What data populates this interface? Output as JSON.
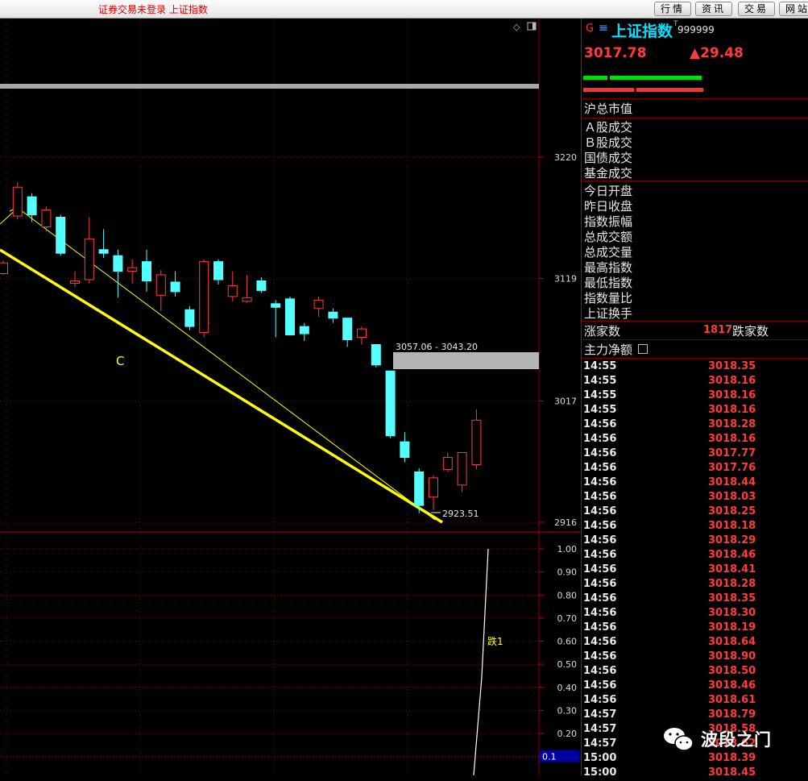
{
  "topbar": {
    "status": "证券交易未登录  上证指数",
    "buttons": [
      "行情",
      "资讯",
      "交易",
      "网站"
    ]
  },
  "chart": {
    "y_axis_labels": [
      "3220",
      "3119",
      "3017",
      "2916"
    ],
    "indicator_axis_labels": [
      "1.00",
      "0.90",
      "0.80",
      "0.70",
      "0.60",
      "0.50",
      "0.40",
      "0.30",
      "0.20",
      "0.1"
    ],
    "annotation_c": "C",
    "range_label": "3057.06 - 3043.20",
    "low_label": "2923.51",
    "indicator_label": "跌1",
    "candles": [
      {
        "o": 3123,
        "c": 3132,
        "h": 3134,
        "l": 3122
      },
      {
        "o": 3171,
        "c": 3195,
        "h": 3199,
        "l": 3168
      },
      {
        "o": 3187,
        "c": 3172,
        "h": 3190,
        "l": 3166
      },
      {
        "o": 3162,
        "c": 3176,
        "h": 3179,
        "l": 3158
      },
      {
        "o": 3170,
        "c": 3140,
        "h": 3172,
        "l": 3138
      },
      {
        "o": 3115,
        "c": 3117,
        "h": 3125,
        "l": 3112
      },
      {
        "o": 3118,
        "c": 3152,
        "h": 3170,
        "l": 3115
      },
      {
        "o": 3143,
        "c": 3140,
        "h": 3160,
        "l": 3136
      },
      {
        "o": 3138,
        "c": 3125,
        "h": 3143,
        "l": 3103
      },
      {
        "o": 3125,
        "c": 3128,
        "h": 3135,
        "l": 3115
      },
      {
        "o": 3133,
        "c": 3117,
        "h": 3143,
        "l": 3108
      },
      {
        "o": 3105,
        "c": 3122,
        "h": 3126,
        "l": 3092
      },
      {
        "o": 3116,
        "c": 3108,
        "h": 3125,
        "l": 3104
      },
      {
        "o": 3093,
        "c": 3079,
        "h": 3096,
        "l": 3076
      },
      {
        "o": 3074,
        "c": 3133,
        "h": 3135,
        "l": 3070
      },
      {
        "o": 3133,
        "c": 3118,
        "h": 3135,
        "l": 3114
      },
      {
        "o": 3104,
        "c": 3113,
        "h": 3125,
        "l": 3100
      },
      {
        "o": 3100,
        "c": 3103,
        "h": 3122,
        "l": 3099
      },
      {
        "o": 3117,
        "c": 3109,
        "h": 3120,
        "l": 3107
      },
      {
        "o": 3098,
        "c": 3095,
        "h": 3101,
        "l": 3070
      },
      {
        "o": 3102,
        "c": 3072,
        "h": 3104,
        "l": 3072
      },
      {
        "o": 3079,
        "c": 3073,
        "h": 3082,
        "l": 3067
      },
      {
        "o": 3094,
        "c": 3101,
        "h": 3104,
        "l": 3087
      },
      {
        "o": 3091,
        "c": 3086,
        "h": 3094,
        "l": 3082
      },
      {
        "o": 3086,
        "c": 3068,
        "h": 3086,
        "l": 3062
      },
      {
        "o": 3070,
        "c": 3077,
        "h": 3079,
        "l": 3064
      },
      {
        "o": 3064,
        "c": 3047,
        "h": 3064,
        "l": 3045
      },
      {
        "o": 3042,
        "c": 2988,
        "h": 3042,
        "l": 2986
      },
      {
        "o": 2983,
        "c": 2970,
        "h": 2991,
        "l": 2966
      },
      {
        "o": 2958,
        "c": 2930,
        "h": 2961,
        "l": 2923.51
      },
      {
        "o": 2937,
        "c": 2953,
        "h": 2955,
        "l": 2926
      },
      {
        "o": 2960,
        "c": 2970,
        "h": 2974,
        "l": 2958
      },
      {
        "o": 2947,
        "c": 2974,
        "h": 2974,
        "l": 2941
      },
      {
        "o": 2964,
        "c": 3001,
        "h": 3010,
        "l": 2960
      }
    ]
  },
  "quote": {
    "market_code": "G",
    "menu_icon": "hamburger-icon",
    "name": "上证指数",
    "code": "999999",
    "price": "3017.78",
    "change": "▲29.48",
    "fields_group1": [
      "沪总市值"
    ],
    "fields_group2": [
      "Ａ股成交",
      "Ｂ股成交",
      "国债成交",
      "基金成交"
    ],
    "fields_group3": [
      "今日开盘",
      "昨日收盘",
      "指数振幅",
      "总成交额",
      "总成交量",
      "最高指数",
      "最低指数",
      "指数量比",
      "上证换手"
    ],
    "advance_label": "涨家数",
    "advance_count": "1817",
    "decline_label": "跌家数",
    "net_flow_label": "主力净额",
    "ticks": [
      {
        "time": "14:55",
        "price": "3018.35"
      },
      {
        "time": "14:55",
        "price": "3018.16"
      },
      {
        "time": "14:55",
        "price": "3018.16"
      },
      {
        "time": "14:55",
        "price": "3018.16"
      },
      {
        "time": "14:56",
        "price": "3018.28"
      },
      {
        "time": "14:56",
        "price": "3018.16"
      },
      {
        "time": "14:56",
        "price": "3017.77"
      },
      {
        "time": "14:56",
        "price": "3017.76"
      },
      {
        "time": "14:56",
        "price": "3018.44"
      },
      {
        "time": "14:56",
        "price": "3018.03"
      },
      {
        "time": "14:56",
        "price": "3018.25"
      },
      {
        "time": "14:56",
        "price": "3018.18"
      },
      {
        "time": "14:56",
        "price": "3018.29"
      },
      {
        "time": "14:56",
        "price": "3018.46"
      },
      {
        "time": "14:56",
        "price": "3018.41"
      },
      {
        "time": "14:56",
        "price": "3018.28"
      },
      {
        "time": "14:56",
        "price": "3018.35"
      },
      {
        "time": "14:56",
        "price": "3018.30"
      },
      {
        "time": "14:56",
        "price": "3018.19"
      },
      {
        "time": "14:56",
        "price": "3018.64"
      },
      {
        "time": "14:56",
        "price": "3018.90"
      },
      {
        "time": "14:56",
        "price": "3018.50"
      },
      {
        "time": "14:56",
        "price": "3018.46"
      },
      {
        "time": "14:56",
        "price": "3018.61"
      },
      {
        "time": "14:57",
        "price": "3018.79"
      },
      {
        "time": "14:57",
        "price": "3018.58"
      },
      {
        "time": "14:57",
        "price": "3018.62"
      },
      {
        "time": "15:00",
        "price": "3018.39"
      },
      {
        "time": "15:00",
        "price": "3018.45"
      }
    ]
  },
  "watermark": {
    "text": "波段之门",
    "icon": "wechat-icon"
  },
  "colors": {
    "up": "#ff3b3b",
    "down": "#54ffff",
    "trendline": "#ffff00",
    "gridline": "#8b0000"
  }
}
